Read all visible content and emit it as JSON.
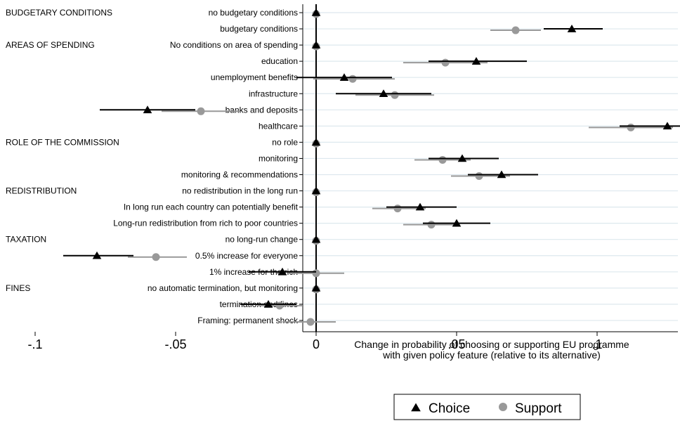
{
  "chart_data": {
    "type": "scatter",
    "xlabel_lines": [
      "Change in probability of choosing or supporting EU programme",
      "with given policy feature (relative to its alternative)"
    ],
    "xlim": [
      -0.1,
      0.15
    ],
    "xticks": [
      -0.1,
      -0.05,
      0,
      0.05,
      0.1,
      0.15
    ],
    "xtick_labels": [
      "-.1",
      "-.05",
      "0",
      ".05",
      ".1",
      ".15"
    ],
    "reference_line_x": 0,
    "legend_placement": "bottom",
    "groups": [
      {
        "label": "BUDGETARY CONDITIONS",
        "first_row": 0
      },
      {
        "label": "AREAS OF SPENDING",
        "first_row": 2
      },
      {
        "label": "ROLE OF THE COMMISSION",
        "first_row": 8
      },
      {
        "label": "REDISTRIBUTION",
        "first_row": 11
      },
      {
        "label": "TAXATION",
        "first_row": 14
      },
      {
        "label": "FINES",
        "first_row": 17
      }
    ],
    "categories": [
      "no budgetary conditions",
      "budgetary conditions",
      "No conditions on area of spending",
      "education",
      "unemployment benefits",
      "infrastructure",
      "banks and deposits",
      "healthcare",
      "no role",
      "monitoring",
      "monitoring & recommendations",
      "no redistribution in the long run",
      "In long run each country can potentially benefit",
      "Long-run redistribution from rich to poor countries",
      "no long-run change",
      "0.5% increase for everyone",
      "1% increase for the rich",
      "no automatic termination, but monitoring",
      "termination and fines",
      "Framing: permanent shock"
    ],
    "series": [
      {
        "name": "Choice",
        "color": "#000000",
        "marker": "triangle",
        "values": [
          0,
          0.091,
          0,
          0.057,
          0.01,
          0.024,
          -0.06,
          0.125,
          0,
          0.052,
          0.066,
          0,
          0.037,
          0.05,
          0,
          -0.078,
          -0.012,
          0,
          -0.017,
          null
        ],
        "ci_low": [
          null,
          0.081,
          null,
          0.04,
          -0.007,
          0.007,
          -0.077,
          0.108,
          null,
          0.04,
          0.054,
          null,
          0.025,
          0.038,
          null,
          -0.09,
          -0.024,
          null,
          -0.027,
          null
        ],
        "ci_high": [
          null,
          0.102,
          null,
          0.075,
          0.027,
          0.041,
          -0.043,
          0.142,
          null,
          0.065,
          0.079,
          null,
          0.05,
          0.062,
          null,
          -0.065,
          0.0,
          null,
          -0.007,
          null
        ]
      },
      {
        "name": "Support",
        "color": "#999999",
        "marker": "circle",
        "values": [
          0,
          0.071,
          0,
          0.046,
          0.013,
          0.028,
          -0.041,
          0.112,
          0,
          0.045,
          0.058,
          0,
          0.029,
          0.041,
          0,
          -0.057,
          0,
          0,
          -0.013,
          -0.002
        ],
        "ci_low": [
          null,
          0.062,
          null,
          0.031,
          -0.001,
          0.014,
          -0.055,
          0.097,
          null,
          0.035,
          0.048,
          null,
          0.02,
          0.031,
          null,
          -0.067,
          -0.01,
          null,
          -0.021,
          -0.012
        ],
        "ci_high": [
          null,
          0.08,
          null,
          0.061,
          0.028,
          0.042,
          -0.027,
          0.127,
          null,
          0.055,
          0.069,
          null,
          0.039,
          0.051,
          null,
          -0.046,
          0.01,
          null,
          -0.005,
          0.007
        ]
      }
    ]
  }
}
